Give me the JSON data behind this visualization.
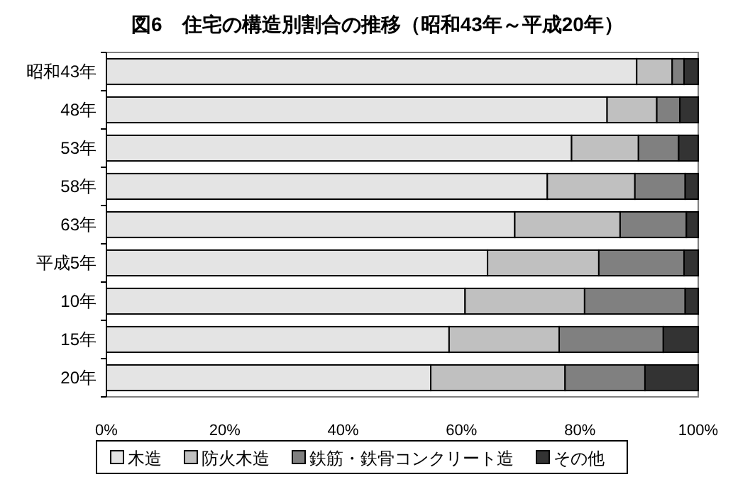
{
  "chart_data": {
    "type": "bar",
    "orientation": "horizontal",
    "stacked": true,
    "title": "図6　住宅の構造別割合の推移（昭和43年～平成20年）",
    "categories": [
      "昭和43年",
      "48年",
      "53年",
      "58年",
      "63年",
      "平成5年",
      "10年",
      "15年",
      "20年"
    ],
    "series": [
      {
        "name": "木造",
        "color": "#e4e4e4",
        "values": [
          89.6,
          84.6,
          78.6,
          74.5,
          69.0,
          64.4,
          60.6,
          57.9,
          54.8
        ]
      },
      {
        "name": "防火木造",
        "color": "#c0c0c0",
        "values": [
          6.0,
          8.4,
          11.3,
          14.8,
          17.8,
          18.8,
          20.2,
          18.6,
          22.7
        ]
      },
      {
        "name": "鉄筋・鉄骨コンクリート造",
        "color": "#808080",
        "values": [
          2.0,
          3.9,
          6.8,
          8.5,
          11.2,
          14.4,
          17.0,
          17.6,
          13.5
        ]
      },
      {
        "name": "その他",
        "color": "#333333",
        "values": [
          2.4,
          3.1,
          3.3,
          2.2,
          2.0,
          2.4,
          2.2,
          5.9,
          9.0
        ]
      }
    ],
    "xlim": [
      0,
      100
    ],
    "xticks": [
      {
        "value": 0,
        "label": "0%"
      },
      {
        "value": 20,
        "label": "20%"
      },
      {
        "value": 40,
        "label": "40%"
      },
      {
        "value": 60,
        "label": "60%"
      },
      {
        "value": 80,
        "label": "80%"
      },
      {
        "value": 100,
        "label": "100%"
      }
    ],
    "grid": false,
    "legend": "bottom"
  }
}
